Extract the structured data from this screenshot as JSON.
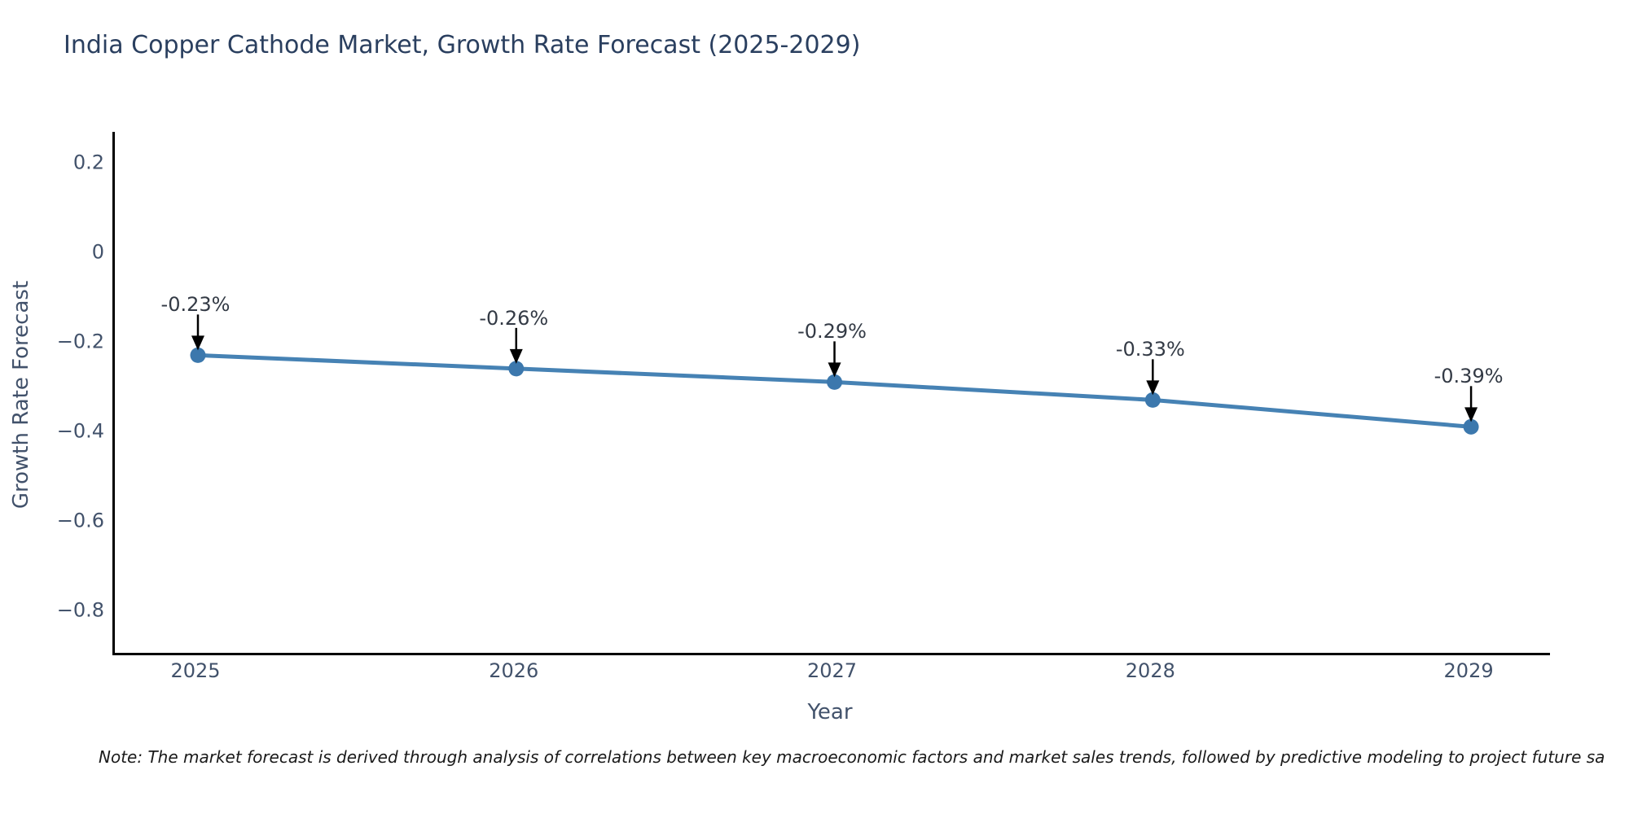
{
  "title": "India Copper Cathode Market, Growth Rate Forecast (2025-2029)",
  "note": "Note: The market forecast is derived through analysis of correlations between key macroeconomic factors and market sales trends, followed by predictive modeling to project future sa",
  "chart_data": {
    "type": "line",
    "title": "India Copper Cathode Market, Growth Rate Forecast (2025-2029)",
    "xlabel": "Year",
    "ylabel": "Growth Rate Forecast",
    "x": [
      2025,
      2026,
      2027,
      2028,
      2029
    ],
    "values": [
      -0.23,
      -0.26,
      -0.29,
      -0.33,
      -0.39
    ],
    "point_labels": [
      "-0.23%",
      "-0.26%",
      "-0.29%",
      "-0.33%",
      "-0.39%"
    ],
    "x_tick_labels": [
      "2025",
      "2026",
      "2027",
      "2028",
      "2029"
    ],
    "y_ticks": [
      0.2,
      0,
      -0.2,
      -0.4,
      -0.6,
      -0.8
    ],
    "y_tick_labels": [
      "0.2",
      "0",
      "−0.2",
      "−0.4",
      "−0.6",
      "−0.8"
    ],
    "xlim": [
      2024.739,
      2029.248
    ],
    "ylim": [
      -0.895,
      0.269
    ],
    "grid": false,
    "legend": "none",
    "line_color": "#4682b4",
    "marker_color": "#3c78ad",
    "arrow_color": "#000000",
    "axis_color": "#000000",
    "title_color": "#2a3f5f",
    "tick_color": "#42526b",
    "background_color": "#ffffff"
  }
}
